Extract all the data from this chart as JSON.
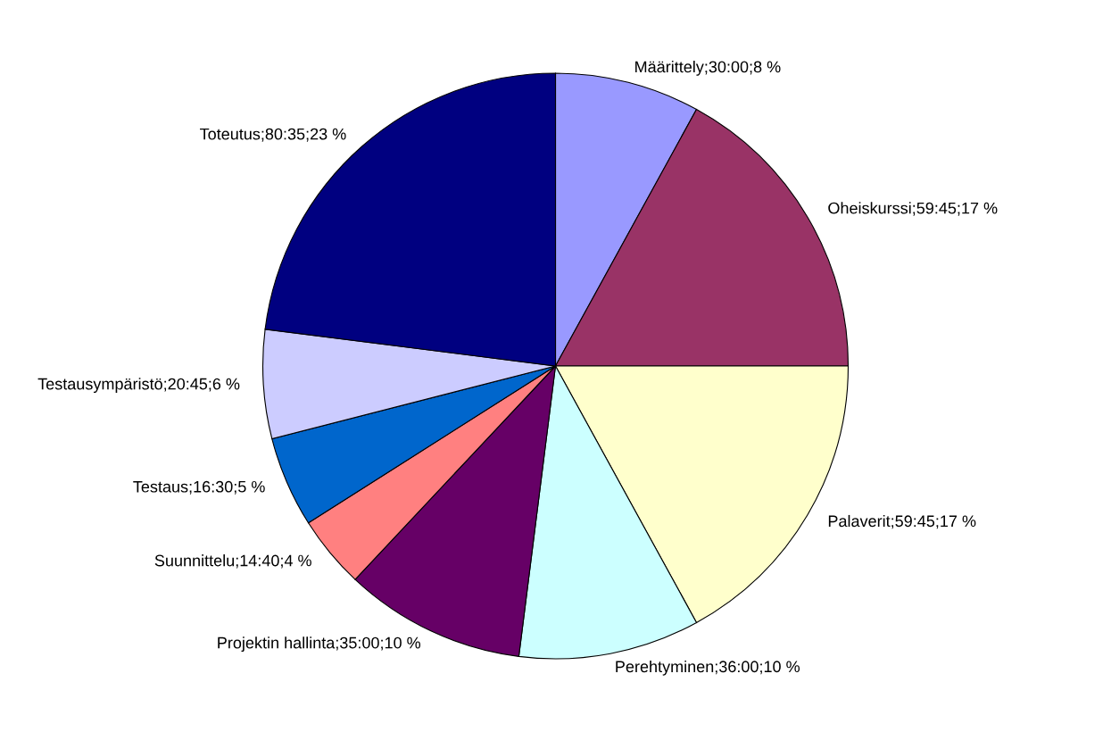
{
  "chart_data": {
    "type": "pie",
    "categories": [
      "Määrittely",
      "Oheiskurssi",
      "Palaverit",
      "Perehtyminen",
      "Projektin hallinta",
      "Suunnittelu",
      "Testaus",
      "Testausympäristö",
      "Toteutus"
    ],
    "values": [
      8,
      17,
      17,
      10,
      10,
      4,
      5,
      6,
      23
    ],
    "value_labels": [
      "30:00;8 %",
      "59:45;17 %",
      "59:45;17 %",
      "36:00;10 %",
      "35:00;10 %",
      "14:40;4 %",
      "16:30;5 %",
      "20:45;6 %",
      "80:35;23 %"
    ],
    "colors": [
      "#9999ff",
      "#993366",
      "#ffffcc",
      "#ccffff",
      "#660066",
      "#ff8080",
      "#0066cc",
      "#ccccff",
      "#000080"
    ],
    "legend": false
  }
}
